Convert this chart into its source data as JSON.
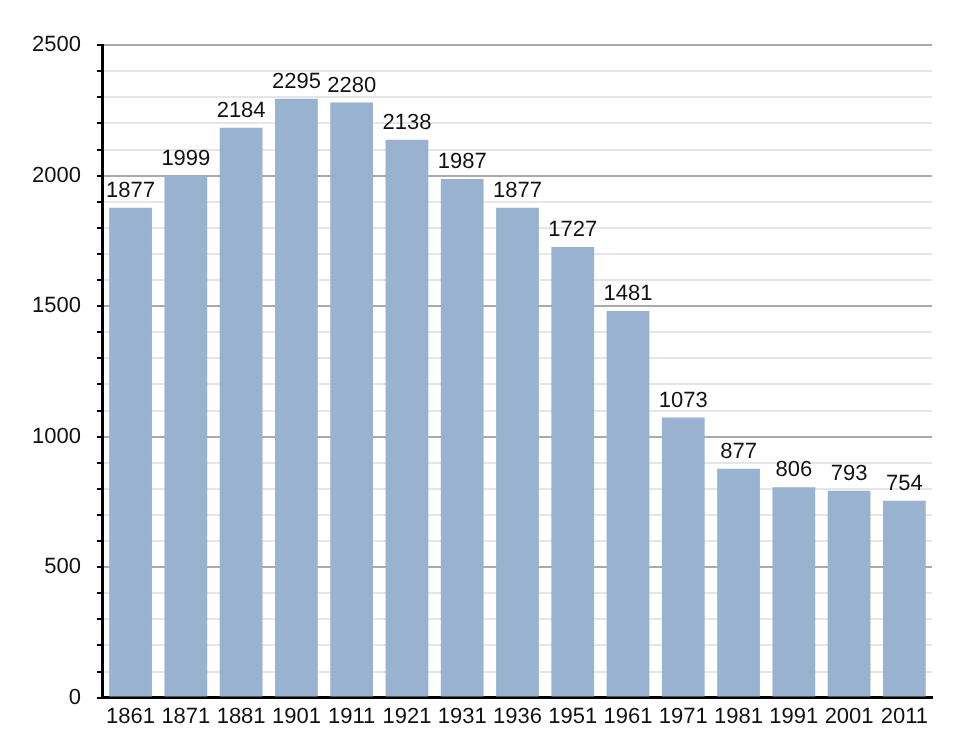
{
  "chart_data": {
    "type": "bar",
    "categories": [
      "1861",
      "1871",
      "1881",
      "1901",
      "1911",
      "1921",
      "1931",
      "1936",
      "1951",
      "1961",
      "1971",
      "1981",
      "1991",
      "2001",
      "2011"
    ],
    "values": [
      1877,
      1999,
      2184,
      2295,
      2280,
      2138,
      1987,
      1877,
      1727,
      1481,
      1073,
      877,
      806,
      793,
      754
    ],
    "color": "#98b2cf",
    "ylim": [
      0,
      2500
    ],
    "yticks": [
      0,
      {
        "value": 100,
        "label": null
      },
      {
        "value": 200,
        "label": null
      },
      {
        "value": 300,
        "label": null
      },
      {
        "value": 400,
        "label": null
      },
      500,
      {
        "value": 600,
        "label": null
      },
      {
        "value": 700,
        "label": null
      },
      {
        "value": 800,
        "label": null
      },
      {
        "value": 900,
        "label": null
      },
      1000,
      {
        "value": 1100,
        "label": null
      },
      {
        "value": 1200,
        "label": null
      },
      {
        "value": 1300,
        "label": null
      },
      {
        "value": 1400,
        "label": null
      },
      1500,
      {
        "value": 1600,
        "label": null
      },
      {
        "value": 1700,
        "label": null
      },
      {
        "value": 1800,
        "label": null
      },
      {
        "value": 1900,
        "label": null
      },
      2000,
      {
        "value": 2100,
        "label": null
      },
      {
        "value": 2200,
        "label": null
      },
      {
        "value": 2300,
        "label": null
      },
      {
        "value": 2400,
        "label": null
      },
      2500
    ],
    "grid": "y",
    "data_labels": true,
    "legend": false
  }
}
